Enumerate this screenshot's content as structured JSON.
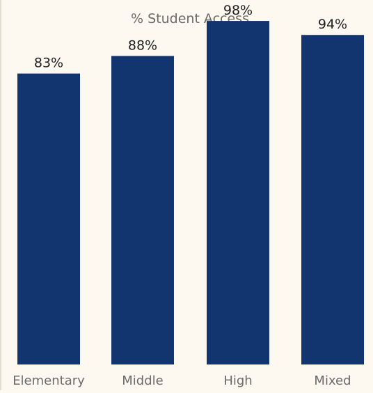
{
  "chart_data": {
    "type": "bar",
    "title": "% Student Access",
    "xlabel": "",
    "ylabel": "",
    "categories": [
      "Elementary",
      "Middle",
      "High",
      "Mixed"
    ],
    "values": [
      83,
      88,
      98,
      94
    ],
    "value_labels": [
      "83%",
      "88%",
      "98%",
      "94%"
    ],
    "ylim": [
      0,
      100
    ],
    "grid": false,
    "legend": "none",
    "bar_color": "#12356f",
    "background": "#fdf8f0"
  }
}
